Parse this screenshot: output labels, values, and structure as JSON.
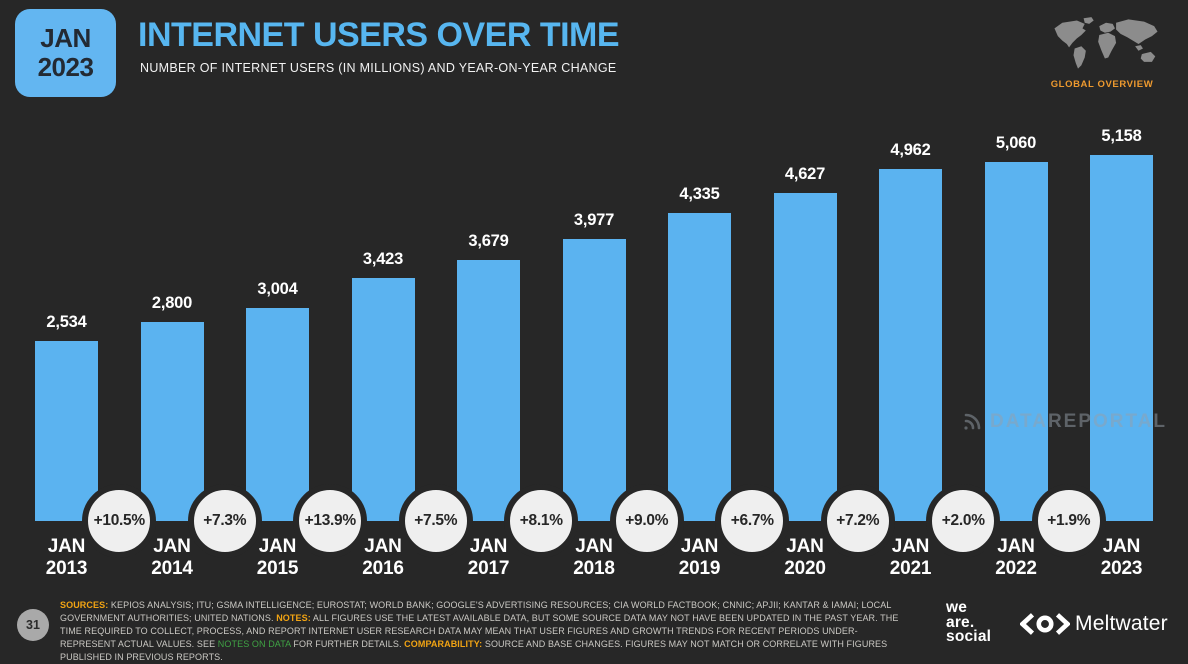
{
  "header": {
    "date_badge": {
      "month": "JAN",
      "year": "2023"
    },
    "title": "INTERNET USERS OVER TIME",
    "subtitle": "NUMBER OF INTERNET USERS (IN MILLIONS) AND YEAR-ON-YEAR CHANGE",
    "region_label": "GLOBAL OVERVIEW"
  },
  "chart_data": {
    "type": "bar",
    "title": "INTERNET USERS OVER TIME",
    "ylabel": "Internet users (millions)",
    "xlabel": "",
    "categories": [
      "JAN 2013",
      "JAN 2014",
      "JAN 2015",
      "JAN 2016",
      "JAN 2017",
      "JAN 2018",
      "JAN 2019",
      "JAN 2020",
      "JAN 2021",
      "JAN 2022",
      "JAN 2023"
    ],
    "values": [
      2534,
      2800,
      3004,
      3423,
      3679,
      3977,
      4335,
      4627,
      4962,
      5060,
      5158
    ],
    "value_labels": [
      "2,534",
      "2,800",
      "3,004",
      "3,423",
      "3,679",
      "3,977",
      "4,335",
      "4,627",
      "4,962",
      "5,060",
      "5,158"
    ],
    "yoy_change_labels": [
      "+10.5%",
      "+7.3%",
      "+13.9%",
      "+7.5%",
      "+8.1%",
      "+9.0%",
      "+6.7%",
      "+7.2%",
      "+2.0%",
      "+1.9%"
    ],
    "unit": "millions",
    "ylim": [
      0,
      5158
    ],
    "grid": false,
    "legend": "none",
    "bar_color": "#5BB3F0"
  },
  "watermark": {
    "text": "DATAREPORTAL"
  },
  "footer": {
    "page_number": "31",
    "sources_label": "SOURCES:",
    "sources_text": " KEPIOS ANALYSIS; ITU; GSMA INTELLIGENCE; EUROSTAT; WORLD BANK; GOOGLE'S ADVERTISING RESOURCES; CIA WORLD FACTBOOK; CNNIC; APJII; KANTAR & IAMAI; LOCAL GOVERNMENT AUTHORITIES; UNITED NATIONS. ",
    "notes_label": "NOTES:",
    "notes_text": " ALL FIGURES USE THE LATEST AVAILABLE DATA, BUT SOME SOURCE DATA MAY NOT HAVE BEEN UPDATED IN THE PAST YEAR. THE TIME REQUIRED TO COLLECT, PROCESS, AND REPORT INTERNET USER RESEARCH DATA MAY MEAN THAT USER FIGURES AND GROWTH TRENDS FOR RECENT PERIODS UNDER-REPRESENT ACTUAL VALUES. SEE ",
    "notes_link": "NOTES ON DATA",
    "notes_text_after": " FOR FURTHER DETAILS. ",
    "comparability_label": "COMPARABILITY:",
    "comparability_text": " SOURCE AND BASE CHANGES. FIGURES MAY NOT MATCH OR CORRELATE WITH FIGURES PUBLISHED IN PREVIOUS REPORTS."
  },
  "branding": {
    "we_are_social_lines": [
      "we",
      "are.",
      "social"
    ],
    "meltwater": "Meltwater"
  },
  "colors": {
    "background": "#272727",
    "bar_blue": "#5BB3F0",
    "title_blue": "#57B6F0",
    "accent_amber": "#F2A413",
    "accent_orange": "#EE9A2F",
    "link_green": "#3FA344",
    "circle_fill": "#EFEFEF",
    "text_white": "#FFFFFF"
  }
}
